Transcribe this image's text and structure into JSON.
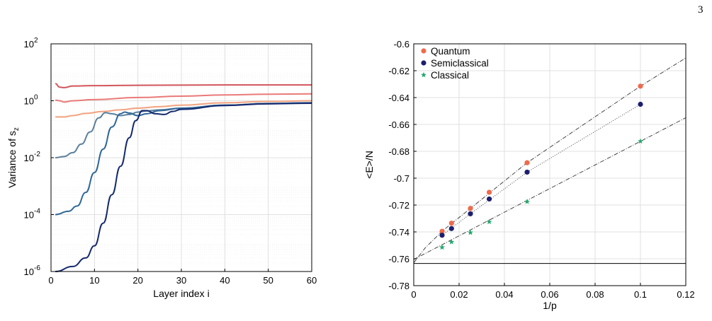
{
  "page_number": "3",
  "chart_data": [
    {
      "type": "line",
      "xlabel": "Layer index i",
      "ylabel": "Variance of s",
      "ylabel_sub": "z",
      "yscale": "log",
      "xlim": [
        0,
        60
      ],
      "ylim": [
        1e-06,
        100
      ],
      "x_ticks": [
        "0",
        "10",
        "20",
        "30",
        "40",
        "50",
        "60"
      ],
      "y_ticks": [
        {
          "base": "10",
          "exp": "-6",
          "value": 1e-06
        },
        {
          "base": "10",
          "exp": "-4",
          "value": 0.0001
        },
        {
          "base": "10",
          "exp": "-2",
          "value": 0.01
        },
        {
          "base": "10",
          "exp": "0",
          "value": 1
        },
        {
          "base": "10",
          "exp": "2",
          "value": 100
        }
      ],
      "grid": true,
      "series": [
        {
          "color": "#d2555a",
          "points": [
            [
              1,
              4.0
            ],
            [
              2,
              3.0
            ],
            [
              3,
              2.9
            ],
            [
              5,
              3.3
            ],
            [
              10,
              3.4
            ],
            [
              20,
              3.5
            ],
            [
              30,
              3.55
            ],
            [
              40,
              3.6
            ],
            [
              50,
              3.6
            ],
            [
              60,
              3.6
            ]
          ]
        },
        {
          "color": "#e97a78",
          "points": [
            [
              1,
              1.05
            ],
            [
              2,
              1.0
            ],
            [
              3,
              0.9
            ],
            [
              5,
              1.0
            ],
            [
              10,
              1.1
            ],
            [
              20,
              1.3
            ],
            [
              30,
              1.45
            ],
            [
              40,
              1.6
            ],
            [
              50,
              1.7
            ],
            [
              60,
              1.75
            ]
          ]
        },
        {
          "color": "#f2a27f",
          "points": [
            [
              1,
              0.27
            ],
            [
              3,
              0.27
            ],
            [
              5,
              0.3
            ],
            [
              8,
              0.36
            ],
            [
              12,
              0.42
            ],
            [
              16,
              0.48
            ],
            [
              20,
              0.55
            ],
            [
              25,
              0.62
            ],
            [
              30,
              0.7
            ],
            [
              40,
              0.85
            ],
            [
              50,
              0.95
            ],
            [
              60,
              1.0
            ]
          ]
        },
        {
          "color": "#5b7f9b",
          "points": [
            [
              1,
              0.01
            ],
            [
              3,
              0.011
            ],
            [
              5,
              0.015
            ],
            [
              7,
              0.03
            ],
            [
              9,
              0.08
            ],
            [
              11,
              0.25
            ],
            [
              12.5,
              0.38
            ],
            [
              14,
              0.35
            ],
            [
              16,
              0.3
            ],
            [
              18,
              0.33
            ],
            [
              20,
              0.4
            ],
            [
              22,
              0.44
            ],
            [
              25,
              0.48
            ],
            [
              30,
              0.55
            ],
            [
              40,
              0.7
            ],
            [
              50,
              0.8
            ],
            [
              60,
              0.85
            ]
          ]
        },
        {
          "color": "#2f6798",
          "points": [
            [
              1,
              0.0001
            ],
            [
              4,
              0.00013
            ],
            [
              6,
              0.0002
            ],
            [
              8,
              0.0006
            ],
            [
              10,
              0.003
            ],
            [
              12,
              0.02
            ],
            [
              14,
              0.12
            ],
            [
              16,
              0.35
            ],
            [
              17,
              0.4
            ],
            [
              18,
              0.37
            ],
            [
              20,
              0.3
            ],
            [
              22,
              0.35
            ],
            [
              25,
              0.45
            ],
            [
              30,
              0.55
            ],
            [
              40,
              0.7
            ],
            [
              50,
              0.8
            ],
            [
              60,
              0.85
            ]
          ]
        },
        {
          "color": "#14296e",
          "points": [
            [
              1,
              1e-06
            ],
            [
              5,
              1.5e-06
            ],
            [
              8,
              3e-06
            ],
            [
              10,
              8e-06
            ],
            [
              12,
              5e-05
            ],
            [
              14,
              0.0005
            ],
            [
              16,
              0.005
            ],
            [
              18,
              0.05
            ],
            [
              19.5,
              0.2
            ],
            [
              21,
              0.45
            ],
            [
              22,
              0.45
            ],
            [
              24,
              0.35
            ],
            [
              26,
              0.33
            ],
            [
              28,
              0.42
            ],
            [
              30,
              0.5
            ],
            [
              40,
              0.68
            ],
            [
              50,
              0.78
            ],
            [
              60,
              0.82
            ]
          ]
        }
      ]
    },
    {
      "type": "scatter",
      "xlabel": "1/p",
      "ylabel": "<E>/N",
      "xlim": [
        0,
        0.12
      ],
      "ylim": [
        -0.78,
        -0.6
      ],
      "x_ticks": [
        "0",
        "0.02",
        "0.04",
        "0.06",
        "0.08",
        "0.1",
        "0.12"
      ],
      "y_ticks": [
        "-0.6",
        "-0.62",
        "-0.64",
        "-0.66",
        "-0.68",
        "-0.7",
        "-0.72",
        "-0.74",
        "-0.76",
        "-0.78"
      ],
      "grid": true,
      "legend_position": "top-left",
      "hline": -0.7635,
      "series": [
        {
          "name": "Quantum",
          "color": "#ef6a4c",
          "marker": "circle",
          "x": [
            0.0125,
            0.01667,
            0.025,
            0.0333,
            0.05,
            0.1
          ],
          "y": [
            -0.7395,
            -0.7335,
            -0.7225,
            -0.7105,
            -0.6885,
            -0.6315
          ]
        },
        {
          "name": "Semiclassical",
          "color": "#1c1f6e",
          "marker": "circle",
          "x": [
            0.0125,
            0.01667,
            0.025,
            0.0333,
            0.05,
            0.1
          ],
          "y": [
            -0.7425,
            -0.7375,
            -0.7265,
            -0.7155,
            -0.6955,
            -0.645
          ]
        },
        {
          "name": "Classical",
          "color": "#20a86b",
          "marker": "star",
          "x": [
            0.0125,
            0.01667,
            0.025,
            0.0333,
            0.05,
            0.1
          ],
          "y": [
            -0.7515,
            -0.7475,
            -0.7405,
            -0.7325,
            -0.7175,
            -0.6725
          ]
        }
      ],
      "fit_lines": [
        {
          "style": "dashdot",
          "x": [
            0,
            0.005,
            0.0125,
            0.025,
            0.05,
            0.1,
            0.12
          ],
          "y": [
            -0.763,
            -0.752,
            -0.7395,
            -0.7225,
            -0.6885,
            -0.6315,
            -0.6105
          ]
        },
        {
          "style": "dotted",
          "x": [
            0.0125,
            0.025,
            0.05,
            0.1
          ],
          "y": [
            -0.7425,
            -0.7265,
            -0.6955,
            -0.645
          ]
        },
        {
          "style": "dashdot",
          "x": [
            0,
            0.12
          ],
          "y": [
            -0.7605,
            -0.655
          ]
        }
      ]
    }
  ]
}
